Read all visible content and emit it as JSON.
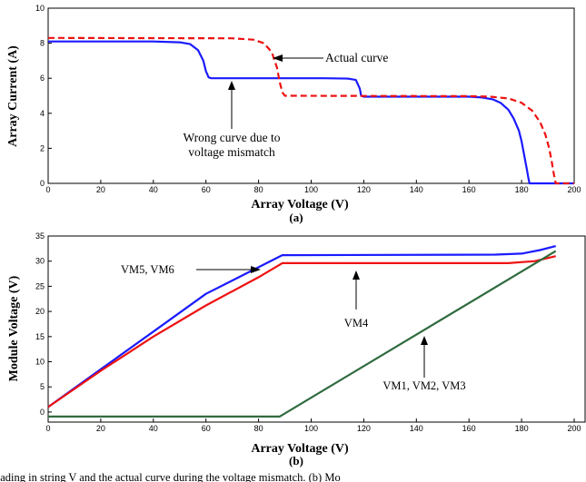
{
  "caption_fragment": "hading in string V and the actual curve during the voltage mismatch. (b) Mo",
  "colors": {
    "blue": "#1a1aff",
    "red": "#ee1111",
    "green": "#2f6b3f",
    "axis": "#000000"
  },
  "chart_data": [
    {
      "type": "line",
      "panel_label": "(a)",
      "xlabel": "Array Voltage (V)",
      "ylabel": "Array Current (A)",
      "xlim": [
        0,
        200
      ],
      "ylim": [
        0,
        10
      ],
      "x_ticks": [
        0,
        20,
        40,
        60,
        80,
        100,
        120,
        140,
        160,
        180,
        200
      ],
      "y_ticks": [
        0,
        2,
        4,
        6,
        8,
        10
      ],
      "grid": false,
      "series": [
        {
          "style": "solid",
          "color": "#1a1aff",
          "points": [
            [
              0,
              8.1
            ],
            [
              40,
              8.1
            ],
            [
              50,
              8.05
            ],
            [
              54,
              7.95
            ],
            [
              57,
              7.6
            ],
            [
              59,
              7.0
            ],
            [
              60,
              6.4
            ],
            [
              61,
              6.05
            ],
            [
              62,
              6.0
            ],
            [
              105,
              6.0
            ],
            [
              114,
              5.98
            ],
            [
              117,
              5.9
            ],
            [
              118.5,
              5.4
            ],
            [
              119,
              5.0
            ],
            [
              120,
              4.95
            ],
            [
              160,
              4.95
            ],
            [
              165,
              4.9
            ],
            [
              169,
              4.8
            ],
            [
              172,
              4.6
            ],
            [
              175,
              4.2
            ],
            [
              177,
              3.7
            ],
            [
              179,
              3.0
            ],
            [
              180,
              2.4
            ],
            [
              181,
              1.6
            ],
            [
              182,
              0.8
            ],
            [
              182.6,
              0.3
            ],
            [
              183,
              0
            ],
            [
              200,
              0
            ]
          ]
        },
        {
          "style": "dashed",
          "color": "#ee1111",
          "points": [
            [
              0,
              8.3
            ],
            [
              70,
              8.28
            ],
            [
              78,
              8.2
            ],
            [
              82,
              8.0
            ],
            [
              85,
              7.5
            ],
            [
              87,
              6.6
            ],
            [
              88,
              5.8
            ],
            [
              89,
              5.2
            ],
            [
              90,
              5.0
            ],
            [
              160,
              4.98
            ],
            [
              168,
              4.95
            ],
            [
              175,
              4.85
            ],
            [
              180,
              4.6
            ],
            [
              184,
              4.15
            ],
            [
              187,
              3.5
            ],
            [
              189,
              2.8
            ],
            [
              190.5,
              2.0
            ],
            [
              191.5,
              1.2
            ],
            [
              192.3,
              0.5
            ],
            [
              193,
              0
            ],
            [
              200,
              0
            ]
          ]
        }
      ],
      "annotations": [
        {
          "text": "Actual curve"
        },
        {
          "lines": [
            "Wrong curve due to",
            "voltage mismatch"
          ]
        }
      ]
    },
    {
      "type": "line",
      "panel_label": "(b)",
      "xlabel": "Array Voltage (V)",
      "ylabel": "Module Voltage (V)",
      "xlim": [
        0,
        200
      ],
      "ylim": [
        -2,
        35
      ],
      "x_ticks": [
        0,
        20,
        40,
        60,
        80,
        100,
        120,
        140,
        160,
        180,
        200
      ],
      "y_ticks": [
        0,
        5,
        10,
        15,
        20,
        25,
        30,
        35
      ],
      "grid": false,
      "series": [
        {
          "color": "#1a1aff",
          "points": [
            [
              0,
              1.0
            ],
            [
              20,
              8.5
            ],
            [
              40,
              16.0
            ],
            [
              60,
              23.5
            ],
            [
              80,
              28.8
            ],
            [
              89,
              31.2
            ],
            [
              170,
              31.3
            ],
            [
              180,
              31.5
            ],
            [
              187,
              32.2
            ],
            [
              193,
              33.0
            ]
          ]
        },
        {
          "color": "#ee1111",
          "points": [
            [
              0,
              1.0
            ],
            [
              20,
              8.2
            ],
            [
              40,
              15.0
            ],
            [
              60,
              21.2
            ],
            [
              80,
              26.8
            ],
            [
              89,
              29.6
            ],
            [
              175,
              29.6
            ],
            [
              185,
              30.0
            ],
            [
              193,
              31.0
            ]
          ]
        },
        {
          "color": "#2f6b3f",
          "points": [
            [
              0,
              -0.9
            ],
            [
              88,
              -0.9
            ],
            [
              193,
              32.0
            ]
          ]
        }
      ],
      "annotations": [
        {
          "text": "VM5, VM6"
        },
        {
          "text": "VM4"
        },
        {
          "text": "VM1, VM2, VM3"
        }
      ]
    }
  ]
}
